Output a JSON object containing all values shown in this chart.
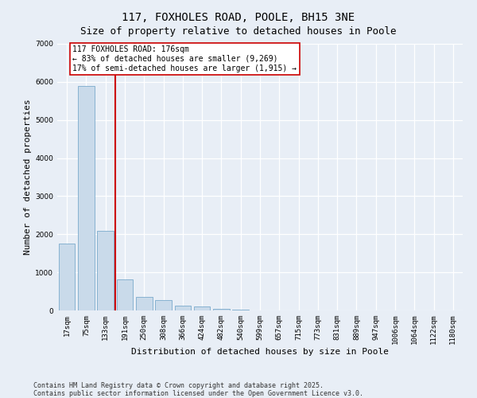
{
  "title": "117, FOXHOLES ROAD, POOLE, BH15 3NE",
  "subtitle": "Size of property relative to detached houses in Poole",
  "xlabel": "Distribution of detached houses by size in Poole",
  "ylabel": "Number of detached properties",
  "categories": [
    "17sqm",
    "75sqm",
    "133sqm",
    "191sqm",
    "250sqm",
    "308sqm",
    "366sqm",
    "424sqm",
    "482sqm",
    "540sqm",
    "599sqm",
    "657sqm",
    "715sqm",
    "773sqm",
    "831sqm",
    "889sqm",
    "947sqm",
    "1006sqm",
    "1064sqm",
    "1122sqm",
    "1180sqm"
  ],
  "values": [
    1750,
    5900,
    2100,
    820,
    360,
    270,
    130,
    100,
    50,
    28,
    8,
    4,
    2,
    1,
    1,
    0,
    0,
    0,
    0,
    0,
    0
  ],
  "bar_color": "#c9daea",
  "bar_edge_color": "#7aaacc",
  "vline_color": "#cc0000",
  "vline_pos": 2.5,
  "annotation_title": "117 FOXHOLES ROAD: 176sqm",
  "annotation_line1": "← 83% of detached houses are smaller (9,269)",
  "annotation_line2": "17% of semi-detached houses are larger (1,915) →",
  "annotation_box_edgecolor": "#cc0000",
  "ylim_max": 7000,
  "yticks": [
    0,
    1000,
    2000,
    3000,
    4000,
    5000,
    6000,
    7000
  ],
  "bg_color": "#e8eef6",
  "footer1": "Contains HM Land Registry data © Crown copyright and database right 2025.",
  "footer2": "Contains public sector information licensed under the Open Government Licence v3.0.",
  "title_fontsize": 10,
  "subtitle_fontsize": 9,
  "axis_label_fontsize": 8,
  "tick_fontsize": 6.5,
  "annotation_fontsize": 7,
  "footer_fontsize": 6
}
